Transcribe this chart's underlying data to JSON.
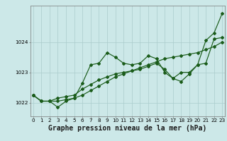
{
  "title": "Graphe pression niveau de la mer (hPa)",
  "bg_color": "#cce8e8",
  "grid_color": "#aacccc",
  "line_color": "#1a5c1a",
  "x_labels": [
    "0",
    "1",
    "2",
    "3",
    "4",
    "5",
    "6",
    "7",
    "8",
    "9",
    "10",
    "11",
    "12",
    "13",
    "14",
    "15",
    "16",
    "17",
    "18",
    "19",
    "20",
    "21",
    "22",
    "23"
  ],
  "y_ticks": [
    1022,
    1023,
    1024
  ],
  "ylim": [
    1021.55,
    1025.2
  ],
  "xlim": [
    -0.3,
    23.3
  ],
  "series1": [
    1022.25,
    1022.05,
    1022.05,
    1021.85,
    1022.05,
    1022.15,
    1022.65,
    1023.25,
    1023.3,
    1023.65,
    1023.5,
    1023.3,
    1023.25,
    1023.3,
    1023.55,
    1023.45,
    1023.0,
    1022.8,
    1023.0,
    1023.0,
    1023.25,
    1024.05,
    1024.3,
    1024.95
  ],
  "series2": [
    1022.25,
    1022.05,
    1022.05,
    1022.05,
    1022.1,
    1022.15,
    1022.25,
    1022.4,
    1022.55,
    1022.7,
    1022.85,
    1022.95,
    1023.05,
    1023.15,
    1023.25,
    1023.35,
    1023.45,
    1023.5,
    1023.55,
    1023.6,
    1023.65,
    1023.75,
    1023.85,
    1024.0
  ],
  "series3": [
    1022.25,
    1022.05,
    1022.05,
    1022.15,
    1022.2,
    1022.25,
    1022.45,
    1022.6,
    1022.75,
    1022.85,
    1022.95,
    1023.0,
    1023.05,
    1023.1,
    1023.2,
    1023.3,
    1023.1,
    1022.8,
    1022.7,
    1022.95,
    1023.25,
    1023.3,
    1024.1,
    1024.15
  ],
  "marker": "D",
  "marker_size": 2.0,
  "line_width": 0.85,
  "title_fontsize": 7.0,
  "tick_fontsize": 5.2,
  "ylabel_fontsize": 6.5
}
